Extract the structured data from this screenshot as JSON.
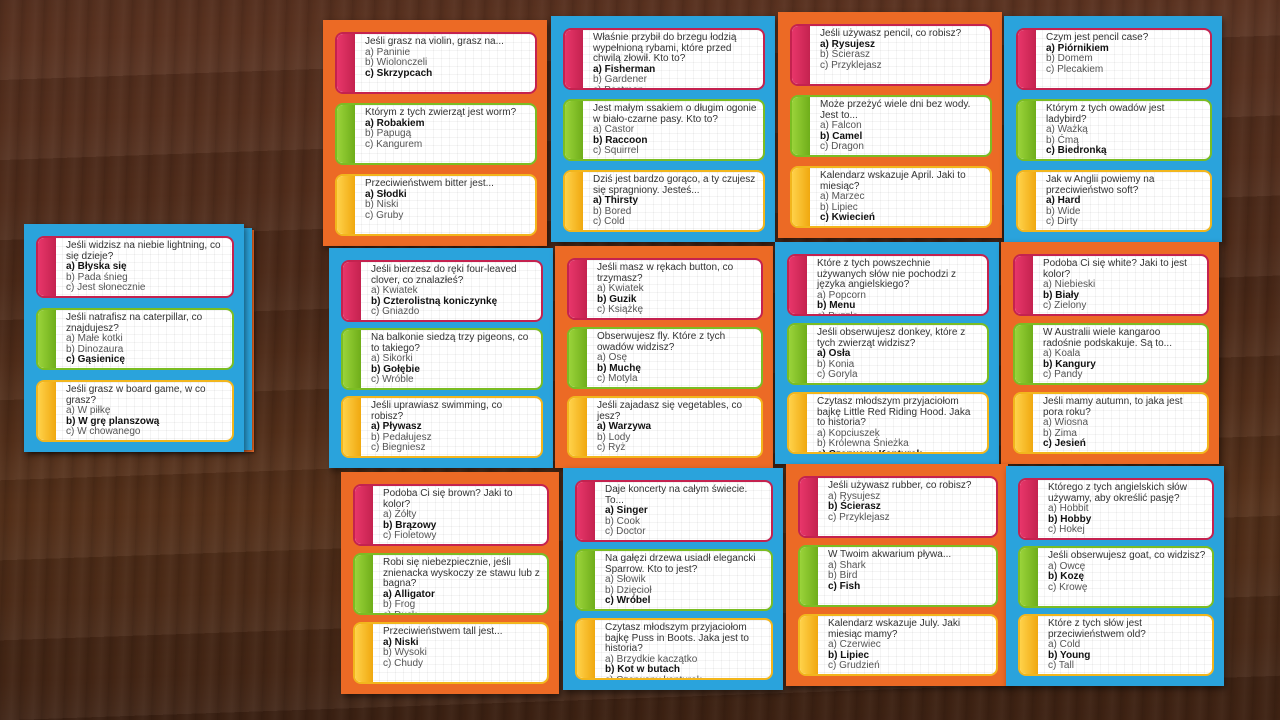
{
  "cards": [
    {
      "color": "blue",
      "questions": [
        {
          "color": "red",
          "text": "Jeśli widzisz na niebie lightning, co się dzieje?",
          "options": [
            "a) Błyska się",
            "b) Pada śnieg",
            "c) Jest słonecznie"
          ],
          "correct": 0
        },
        {
          "color": "green",
          "text": "Jeśli natrafisz na caterpillar, co znajdujesz?",
          "options": [
            "a) Małe kotki",
            "b) Dinozaura",
            "c) Gąsienicę"
          ],
          "correct": 2
        },
        {
          "color": "yellow",
          "text": "Jeśli grasz w board game, w co grasz?",
          "options": [
            "a) W piłkę",
            "b) W grę planszową",
            "c) W chowanego"
          ],
          "correct": 1
        }
      ]
    },
    {
      "color": "orange",
      "questions": [
        {
          "color": "red",
          "text": "Jeśli grasz na violin, grasz na...",
          "options": [
            "a) Paninie",
            "b) Wiolonczeli",
            "c) Skrzypcach"
          ],
          "correct": 2
        },
        {
          "color": "green",
          "text": "Którym z tych zwierząt jest worm?",
          "options": [
            "a) Robakiem",
            "b) Papugą",
            "c) Kangurem"
          ],
          "correct": 0
        },
        {
          "color": "yellow",
          "text": "Przeciwieństwem bitter jest...",
          "options": [
            "a) Słodki",
            "b) Niski",
            "c) Gruby"
          ],
          "correct": 0
        }
      ]
    },
    {
      "color": "blue",
      "questions": [
        {
          "color": "red",
          "text": "Właśnie przybił do brzegu łodzią wypełnioną rybami, które przed chwilą złowił. Kto to?",
          "options": [
            "a) Fisherman",
            "b) Gardener",
            "c) Postman"
          ],
          "correct": 0
        },
        {
          "color": "green",
          "text": "Jest małym ssakiem o długim ogonie w biało-czarne pasy. Kto to?",
          "options": [
            "a) Castor",
            "b) Raccoon",
            "c) Squirrel"
          ],
          "correct": 1
        },
        {
          "color": "yellow",
          "text": "Dziś jest bardzo gorąco, a ty czujesz się spragniony. Jesteś...",
          "options": [
            "a) Thirsty",
            "b) Bored",
            "c) Cold"
          ],
          "correct": 0
        }
      ]
    },
    {
      "color": "orange",
      "questions": [
        {
          "color": "red",
          "text": "Jeśli używasz pencil, co robisz?",
          "options": [
            "a) Rysujesz",
            "b) Ścierasz",
            "c) Przyklejasz"
          ],
          "correct": 0
        },
        {
          "color": "green",
          "text": "Może przeżyć wiele dni bez wody. Jest to...",
          "options": [
            "a) Falcon",
            "b) Camel",
            "c) Dragon"
          ],
          "correct": 1
        },
        {
          "color": "yellow",
          "text": "Kalendarz wskazuje April. Jaki to miesiąc?",
          "options": [
            "a) Marzec",
            "b) Lipiec",
            "c) Kwiecień"
          ],
          "correct": 2
        }
      ]
    },
    {
      "color": "blue",
      "questions": [
        {
          "color": "red",
          "text": "Czym jest pencil case?",
          "options": [
            "a) Piórnikiem",
            "b) Domem",
            "c) Plecakiem"
          ],
          "correct": 0
        },
        {
          "color": "green",
          "text": "Którym z tych owadów jest ladybird?",
          "options": [
            "a) Ważką",
            "b) Ćmą",
            "c) Biedronką"
          ],
          "correct": 2
        },
        {
          "color": "yellow",
          "text": "Jak w Anglii powiemy na przeciwieństwo soft?",
          "options": [
            "a) Hard",
            "b) Wide",
            "c) Dirty"
          ],
          "correct": 0
        }
      ]
    },
    {
      "color": "blue",
      "questions": [
        {
          "color": "red",
          "text": "Jeśli bierzesz do ręki four-leaved clover, co znalazłeś?",
          "options": [
            "a) Kwiatek",
            "b) Czterolistną koniczynkę",
            "c) Gniazdo"
          ],
          "correct": 1
        },
        {
          "color": "green",
          "text": "Na balkonie siedzą trzy pigeons, co to takiego?",
          "options": [
            "a) Sikorki",
            "b) Gołębie",
            "c) Wróble"
          ],
          "correct": 1
        },
        {
          "color": "yellow",
          "text": "Jeśli uprawiasz swimming, co robisz?",
          "options": [
            "a) Pływasz",
            "b) Pedałujesz",
            "c) Biegniesz"
          ],
          "correct": 0
        }
      ]
    },
    {
      "color": "orange",
      "questions": [
        {
          "color": "red",
          "text": "Jeśli masz w rękach button, co trzymasz?",
          "options": [
            "a) Kwiatek",
            "b) Guzik",
            "c) Książkę"
          ],
          "correct": 1
        },
        {
          "color": "green",
          "text": "Obserwujesz fly. Które z tych owadów widzisz?",
          "options": [
            "a) Osę",
            "b) Muchę",
            "c) Motyla"
          ],
          "correct": 1
        },
        {
          "color": "yellow",
          "text": "Jeśli zajadasz się vegetables, co jesz?",
          "options": [
            "a) Warzywa",
            "b) Lody",
            "c) Ryż"
          ],
          "correct": 0
        }
      ]
    },
    {
      "color": "blue",
      "questions": [
        {
          "color": "red",
          "text": "Które z tych powszechnie używanych słów nie pochodzi z języka angielskiego?",
          "options": [
            "a) Popcorn",
            "b) Menu",
            "c) Puzzle"
          ],
          "correct": 1
        },
        {
          "color": "green",
          "text": "Jeśli obserwujesz donkey, które z tych zwierząt widzisz?",
          "options": [
            "a) Osła",
            "b) Konia",
            "c) Goryla"
          ],
          "correct": 0
        },
        {
          "color": "yellow",
          "text": "Czytasz młodszym przyjaciołom bajkę Little Red Riding Hood. Jaka to historia?",
          "options": [
            "a) Kopciuszek",
            "b) Królewna Śnieżka",
            "c) Czerwony Kapturek"
          ],
          "correct": 2
        }
      ]
    },
    {
      "color": "orange",
      "questions": [
        {
          "color": "red",
          "text": "Podoba Ci się white? Jaki to jest kolor?",
          "options": [
            "a) Niebieski",
            "b) Biały",
            "c) Zielony"
          ],
          "correct": 1
        },
        {
          "color": "green",
          "text": "W Australii wiele kangaroo radośnie podskakuje. Są to...",
          "options": [
            "a) Koala",
            "b) Kangury",
            "c) Pandy"
          ],
          "correct": 1
        },
        {
          "color": "yellow",
          "text": "Jeśli mamy autumn, to jaka jest pora roku?",
          "options": [
            "a) Wiosna",
            "b) Zima",
            "c) Jesień"
          ],
          "correct": 2
        }
      ]
    },
    {
      "color": "orange",
      "questions": [
        {
          "color": "red",
          "text": "Podoba Ci się brown? Jaki to kolor?",
          "options": [
            "a) Żółty",
            "b) Brązowy",
            "c) Fioletowy"
          ],
          "correct": 1
        },
        {
          "color": "green",
          "text": "Robi się niebezpiecznie, jeśli znienacka wyskoczy ze stawu lub z bagna?",
          "options": [
            "a) Alligator",
            "b) Frog",
            "c) Duck"
          ],
          "correct": 0
        },
        {
          "color": "yellow",
          "text": "Przeciwieństwem tall jest...",
          "options": [
            "a) Niski",
            "b) Wysoki",
            "c) Chudy"
          ],
          "correct": 0
        }
      ]
    },
    {
      "color": "blue",
      "questions": [
        {
          "color": "red",
          "text": "Daje koncerty na całym świecie. To...",
          "options": [
            "a) Singer",
            "b) Cook",
            "c) Doctor"
          ],
          "correct": 0
        },
        {
          "color": "green",
          "text": "Na gałęzi drzewa usiadł elegancki Sparrow. Kto to jest?",
          "options": [
            "a) Słowik",
            "b) Dzięcioł",
            "c) Wróbel"
          ],
          "correct": 2
        },
        {
          "color": "yellow",
          "text": "Czytasz młodszym przyjaciołom bajkę Puss in Boots. Jaka jest to historia?",
          "options": [
            "a) Brzydkie kaczątko",
            "b) Kot w butach",
            "c) Czerwony kapturek"
          ],
          "correct": 1
        }
      ]
    },
    {
      "color": "orange",
      "questions": [
        {
          "color": "red",
          "text": "Jeśli używasz rubber, co robisz?",
          "options": [
            "a) Rysujesz",
            "b) Ścierasz",
            "c) Przyklejasz"
          ],
          "correct": 1
        },
        {
          "color": "green",
          "text": "W Twoim akwarium pływa...",
          "options": [
            "a) Shark",
            "b) Bird",
            "c) Fish"
          ],
          "correct": 2
        },
        {
          "color": "yellow",
          "text": "Kalendarz wskazuje July. Jaki miesiąc mamy?",
          "options": [
            "a) Czerwiec",
            "b) Lipiec",
            "c) Grudzień"
          ],
          "correct": 1
        }
      ]
    },
    {
      "color": "blue",
      "questions": [
        {
          "color": "red",
          "text": "Którego z tych angielskich słów używamy, aby określić pasję?",
          "options": [
            "a) Hobbit",
            "b) Hobby",
            "c) Hokej"
          ],
          "correct": 1
        },
        {
          "color": "green",
          "text": "Jeśli obserwujesz goat, co widzisz?",
          "options": [
            "a) Owcę",
            "b) Kozę",
            "c) Krowę"
          ],
          "correct": 1
        },
        {
          "color": "yellow",
          "text": "Które z tych słów jest przeciwieństwem old?",
          "options": [
            "a) Cold",
            "b) Young",
            "c) Tall"
          ],
          "correct": 1
        }
      ]
    }
  ]
}
